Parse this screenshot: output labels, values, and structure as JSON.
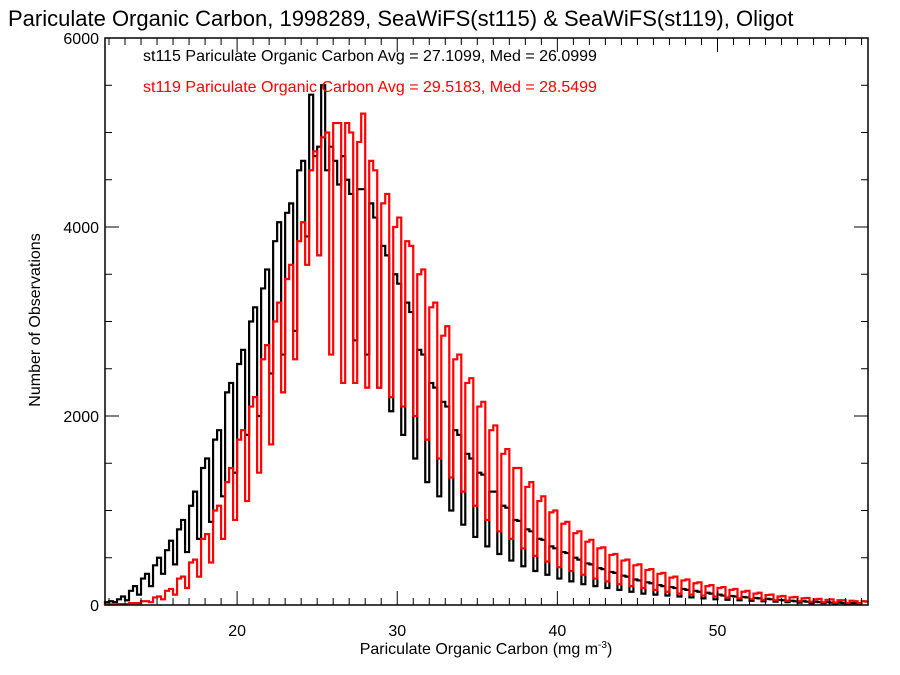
{
  "chart_data": {
    "type": "histogram",
    "title": "Pariculate Organic Carbon, 1998289, SeaWiFS(st115) & SeaWiFS(st119), Oligot",
    "xlabel": "Pariculate Organic Carbon (mg m",
    "xlabel_superscript": "-3",
    "xlabel_suffix": ")",
    "ylabel": "Number of Observations",
    "xlim": [
      11.75,
      59.4
    ],
    "ylim": [
      0,
      6000
    ],
    "x_ticks": [
      20,
      30,
      40,
      50
    ],
    "x_tick_labels": [
      "20",
      "30",
      "40",
      "50"
    ],
    "x_minor_step": 1,
    "y_ticks": [
      0,
      2000,
      4000,
      6000
    ],
    "y_tick_labels": [
      "0",
      "2000",
      "4000",
      "6000"
    ],
    "y_minor_step": 500,
    "grid": false,
    "legend_placement": "top-left",
    "bin_start": 11.75,
    "bin_width": 0.25,
    "series": [
      {
        "name": "st115",
        "color": "#000000",
        "legend": "st115 Pariculate Organic Carbon Avg = 27.1099, Med = 26.0999",
        "avg": 27.1099,
        "median": 26.0999,
        "values": [
          30,
          40,
          30,
          60,
          90,
          50,
          150,
          200,
          110,
          280,
          330,
          200,
          420,
          500,
          330,
          580,
          680,
          430,
          800,
          900,
          560,
          1050,
          1200,
          700,
          1450,
          1550,
          880,
          1750,
          1850,
          1150,
          2250,
          2350,
          1400,
          2550,
          2700,
          1800,
          3000,
          3150,
          2000,
          3350,
          3550,
          2450,
          3850,
          4050,
          2650,
          4150,
          4250,
          2900,
          4600,
          4700,
          3900,
          5400,
          4750,
          4850,
          5500,
          4600,
          4850,
          4700,
          4450,
          4750,
          4500,
          4350,
          2800,
          4400,
          4400,
          2650,
          4250,
          4100,
          2300,
          3800,
          3700,
          2050,
          3500,
          3400,
          1800,
          3200,
          3100,
          1550,
          2700,
          2650,
          1300,
          2350,
          2300,
          1150,
          2150,
          2100,
          1000,
          1850,
          1800,
          850,
          1600,
          1550,
          720,
          1400,
          1380,
          620,
          1200,
          1200,
          540,
          1050,
          1030,
          470,
          900,
          890,
          410,
          800,
          780,
          360,
          700,
          690,
          320,
          620,
          600,
          280,
          560,
          550,
          250,
          500,
          480,
          220,
          440,
          430,
          200,
          390,
          380,
          180,
          350,
          340,
          160,
          310,
          300,
          140,
          270,
          260,
          120,
          240,
          230,
          110,
          210,
          200,
          100,
          190,
          180,
          90,
          170,
          160,
          80,
          150,
          140,
          70,
          130,
          120,
          60,
          110,
          100,
          55,
          95,
          90,
          50,
          85,
          80,
          45,
          75,
          70,
          40,
          65,
          60,
          35,
          55,
          50,
          30,
          45,
          40,
          25,
          40,
          35,
          20,
          35,
          30,
          20,
          30,
          25,
          15,
          25,
          20,
          15,
          20,
          20,
          10
        ]
      },
      {
        "name": "st119",
        "color": "#ff0000",
        "legend": "st119 Pariculate Organic Carbon Avg = 29.5183, Med = 28.5499",
        "avg": 29.5183,
        "median": 28.5499,
        "values": [
          5,
          5,
          5,
          10,
          10,
          10,
          20,
          20,
          20,
          40,
          40,
          30,
          80,
          90,
          60,
          150,
          170,
          110,
          280,
          300,
          180,
          450,
          480,
          300,
          700,
          750,
          450,
          1000,
          1050,
          700,
          1300,
          1450,
          900,
          1750,
          1850,
          1100,
          2100,
          2200,
          1400,
          2600,
          2750,
          1700,
          3000,
          3200,
          2250,
          3450,
          3600,
          2600,
          3850,
          4050,
          3600,
          4600,
          4800,
          3700,
          4950,
          5000,
          2650,
          5100,
          5100,
          2350,
          5100,
          5000,
          2350,
          4900,
          5200,
          2300,
          4700,
          4600,
          2300,
          4250,
          4350,
          2200,
          4000,
          4100,
          2100,
          3850,
          3800,
          2000,
          3500,
          3550,
          1750,
          3150,
          3200,
          1550,
          2850,
          2950,
          1350,
          2600,
          2650,
          1200,
          2350,
          2400,
          1050,
          2100,
          2150,
          900,
          1850,
          1900,
          780,
          1600,
          1650,
          700,
          1450,
          1450,
          600,
          1250,
          1300,
          520,
          1100,
          1150,
          460,
          980,
          1000,
          400,
          860,
          880,
          360,
          760,
          780,
          320,
          670,
          690,
          280,
          600,
          610,
          250,
          530,
          540,
          220,
          470,
          480,
          200,
          420,
          430,
          180,
          370,
          380,
          160,
          330,
          340,
          140,
          290,
          300,
          120,
          260,
          270,
          110,
          230,
          240,
          100,
          200,
          210,
          90,
          180,
          190,
          80,
          160,
          170,
          70,
          140,
          150,
          60,
          120,
          130,
          55,
          105,
          110,
          50,
          90,
          95,
          45,
          80,
          85,
          40,
          70,
          75,
          35,
          60,
          65,
          30,
          55,
          60,
          25,
          50,
          50,
          20,
          45,
          40,
          20,
          40,
          35,
          15
        ]
      }
    ]
  }
}
